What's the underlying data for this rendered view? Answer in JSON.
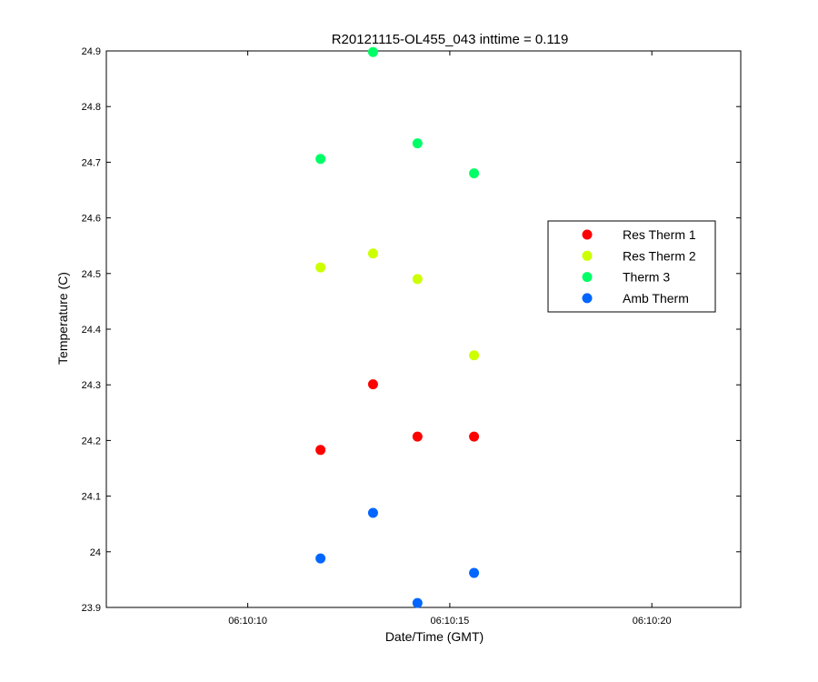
{
  "chart_data": {
    "type": "scatter",
    "title": "R20121115-OL455_043 inttime = 0.119",
    "xlabel": "Date/Time (GMT)",
    "ylabel": "Temperature (C)",
    "xlim": [
      "06:10:06.5",
      "06:10:22.2"
    ],
    "ylim": [
      23.9,
      24.9
    ],
    "x_tick_labels": [
      "06:10:10",
      "06:10:15",
      "06:10:20"
    ],
    "y_tick_labels": [
      "23.9",
      "24",
      "24.1",
      "24.2",
      "24.3",
      "24.4",
      "24.5",
      "24.6",
      "24.7",
      "24.8",
      "24.9"
    ],
    "grid": false,
    "legend_position": "right",
    "series": [
      {
        "name": "Res Therm 1",
        "color": "#ff0000",
        "points": [
          {
            "x": "06:10:11.8",
            "y": 24.183
          },
          {
            "x": "06:10:13.1",
            "y": 24.301
          },
          {
            "x": "06:10:14.2",
            "y": 24.207
          },
          {
            "x": "06:10:15.6",
            "y": 24.207
          }
        ]
      },
      {
        "name": "Res Therm 2",
        "color": "#ccff00",
        "points": [
          {
            "x": "06:10:11.8",
            "y": 24.511
          },
          {
            "x": "06:10:13.1",
            "y": 24.536
          },
          {
            "x": "06:10:14.2",
            "y": 24.49
          },
          {
            "x": "06:10:15.6",
            "y": 24.353
          }
        ]
      },
      {
        "name": "Therm 3",
        "color": "#00ff66",
        "points": [
          {
            "x": "06:10:11.8",
            "y": 24.706
          },
          {
            "x": "06:10:13.1",
            "y": 24.898
          },
          {
            "x": "06:10:14.2",
            "y": 24.734
          },
          {
            "x": "06:10:15.6",
            "y": 24.68
          }
        ]
      },
      {
        "name": "Amb Therm",
        "color": "#0066ff",
        "points": [
          {
            "x": "06:10:11.8",
            "y": 23.988
          },
          {
            "x": "06:10:13.1",
            "y": 24.07
          },
          {
            "x": "06:10:14.2",
            "y": 23.908
          },
          {
            "x": "06:10:15.6",
            "y": 23.962
          }
        ]
      }
    ]
  }
}
